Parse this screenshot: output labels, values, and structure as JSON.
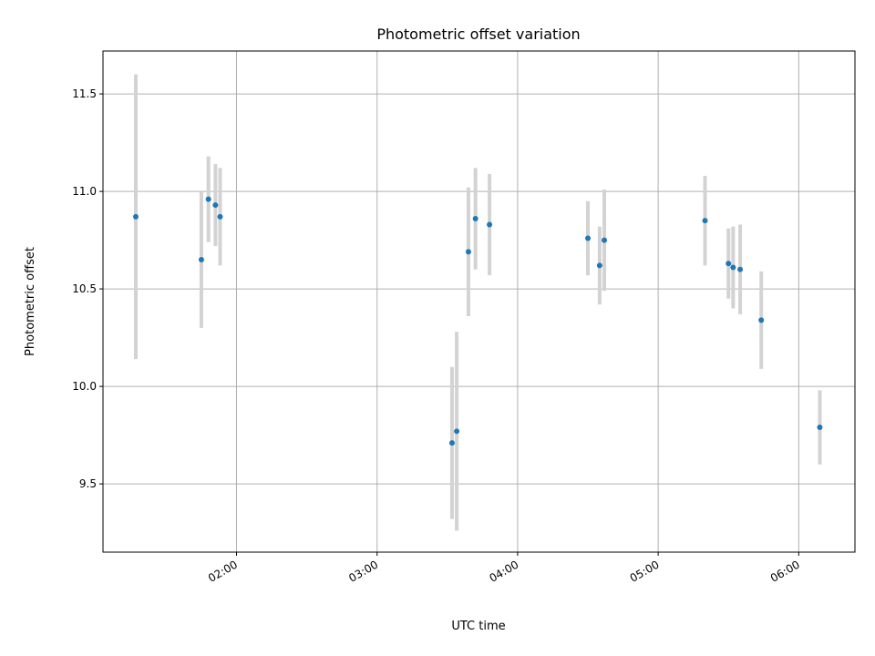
{
  "chart_data": {
    "type": "scatter",
    "title": "Photometric offset variation",
    "xlabel": "UTC time",
    "ylabel": "Photometric offset",
    "xlim": [
      "01:03",
      "06:24"
    ],
    "ylim": [
      9.15,
      11.72
    ],
    "x_ticks": [
      "02:00",
      "03:00",
      "04:00",
      "05:00",
      "06:00"
    ],
    "y_ticks": [
      "9.5",
      "10.0",
      "10.5",
      "11.0",
      "11.5"
    ],
    "grid": true,
    "point_color": "#1f77b4",
    "errorbar_color": "#d3d3d3",
    "points": [
      {
        "x": "01:17",
        "y": 10.87,
        "err": 0.73
      },
      {
        "x": "01:45",
        "y": 10.65,
        "err": 0.35
      },
      {
        "x": "01:48",
        "y": 10.96,
        "err": 0.22
      },
      {
        "x": "01:51",
        "y": 10.93,
        "err": 0.21
      },
      {
        "x": "01:53",
        "y": 10.87,
        "err": 0.25
      },
      {
        "x": "03:32",
        "y": 9.71,
        "err": 0.39
      },
      {
        "x": "03:34",
        "y": 9.77,
        "err": 0.51
      },
      {
        "x": "03:39",
        "y": 10.69,
        "err": 0.33
      },
      {
        "x": "03:42",
        "y": 10.86,
        "err": 0.26
      },
      {
        "x": "03:48",
        "y": 10.83,
        "err": 0.26
      },
      {
        "x": "04:30",
        "y": 10.76,
        "err": 0.19
      },
      {
        "x": "04:35",
        "y": 10.62,
        "err": 0.2
      },
      {
        "x": "04:37",
        "y": 10.75,
        "err": 0.26
      },
      {
        "x": "05:20",
        "y": 10.85,
        "err": 0.23
      },
      {
        "x": "05:30",
        "y": 10.63,
        "err": 0.18
      },
      {
        "x": "05:32",
        "y": 10.61,
        "err": 0.21
      },
      {
        "x": "05:35",
        "y": 10.6,
        "err": 0.23
      },
      {
        "x": "05:44",
        "y": 10.34,
        "err": 0.25
      },
      {
        "x": "06:09",
        "y": 9.79,
        "err": 0.19
      }
    ]
  }
}
